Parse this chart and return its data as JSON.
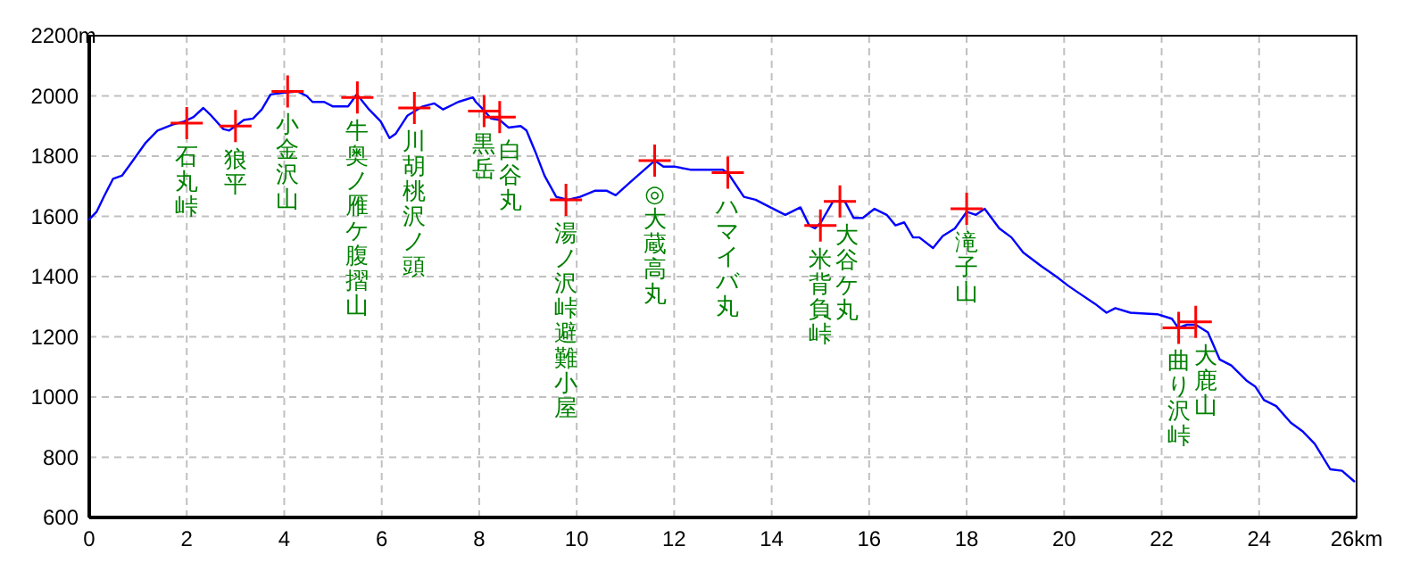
{
  "chart_data": {
    "type": "line",
    "xlim": [
      0,
      26
    ],
    "ylim": [
      600,
      2200
    ],
    "xticks": [
      0,
      2,
      4,
      6,
      8,
      10,
      12,
      14,
      16,
      18,
      20,
      22,
      24,
      {
        "value": 26,
        "label": "26km"
      }
    ],
    "yticks": [
      600,
      800,
      1000,
      1200,
      1400,
      1600,
      1800,
      2000,
      {
        "value": 2200,
        "label": "2200m"
      }
    ],
    "grid": true,
    "series": [
      {
        "type": "line",
        "color": "#0000ff",
        "marker": "none",
        "x": [
          0,
          0.15,
          0.3,
          0.49,
          0.67,
          0.85,
          1.16,
          1.4,
          1.71,
          1.95,
          2.14,
          2.34,
          2.5,
          2.75,
          2.87,
          3.05,
          3.17,
          3.36,
          3.54,
          3.72,
          3.97,
          4.27,
          4.46,
          4.58,
          4.82,
          5.0,
          5.31,
          5.49,
          5.74,
          5.98,
          6.16,
          6.29,
          6.53,
          6.84,
          7.08,
          7.26,
          7.57,
          7.87,
          7.93,
          8.08,
          8.24,
          8.42,
          8.6,
          8.85,
          8.97,
          9.15,
          9.34,
          9.58,
          9.82,
          10.07,
          10.37,
          10.62,
          10.8,
          11.11,
          11.6,
          11.78,
          12.02,
          12.33,
          12.75,
          13.0,
          13.12,
          13.43,
          13.67,
          13.91,
          14.28,
          14.59,
          14.77,
          14.89,
          15.01,
          15.26,
          15.5,
          15.68,
          15.87,
          16.11,
          16.36,
          16.54,
          16.72,
          16.9,
          17.03,
          17.31,
          17.51,
          17.76,
          18.0,
          18.19,
          18.37,
          18.67,
          18.92,
          19.16,
          19.53,
          19.84,
          20.08,
          20.26,
          20.63,
          20.87,
          21.05,
          21.36,
          21.91,
          22.21,
          22.34,
          22.52,
          22.7,
          22.95,
          23.19,
          23.43,
          23.74,
          23.92,
          24.1,
          24.35,
          24.65,
          24.9,
          25.14,
          25.46,
          25.7,
          25.95
        ],
        "values": [
          1590,
          1615,
          1665,
          1725,
          1735,
          1775,
          1845,
          1885,
          1905,
          1915,
          1930,
          1960,
          1935,
          1890,
          1885,
          1905,
          1920,
          1925,
          1955,
          2005,
          2010,
          2015,
          2000,
          1980,
          1980,
          1965,
          1965,
          2005,
          1955,
          1915,
          1860,
          1875,
          1935,
          1965,
          1975,
          1955,
          1980,
          1995,
          1980,
          1955,
          1925,
          1920,
          1895,
          1900,
          1885,
          1815,
          1735,
          1665,
          1655,
          1665,
          1685,
          1685,
          1670,
          1715,
          1785,
          1765,
          1765,
          1755,
          1755,
          1755,
          1740,
          1665,
          1655,
          1635,
          1605,
          1630,
          1570,
          1560,
          1580,
          1650,
          1650,
          1595,
          1595,
          1625,
          1605,
          1570,
          1580,
          1530,
          1530,
          1495,
          1535,
          1560,
          1615,
          1605,
          1625,
          1560,
          1530,
          1480,
          1435,
          1400,
          1370,
          1350,
          1310,
          1280,
          1295,
          1280,
          1275,
          1260,
          1230,
          1240,
          1240,
          1215,
          1125,
          1105,
          1055,
          1035,
          990,
          970,
          915,
          885,
          845,
          760,
          755,
          720
        ]
      },
      {
        "type": "scatter",
        "color": "#ff0000",
        "marker": "cross",
        "x": [
          2.0,
          3.0,
          4.07,
          5.5,
          6.67,
          8.1,
          8.42,
          9.78,
          11.6,
          13.1,
          15.0,
          15.4,
          18.0,
          22.35,
          22.7
        ],
        "values": [
          1910,
          1900,
          2015,
          1995,
          1960,
          1950,
          1930,
          1655,
          1785,
          1745,
          1570,
          1650,
          1625,
          1230,
          1250
        ]
      }
    ],
    "annotations": [
      {
        "text": "石丸峠",
        "x": 2.0,
        "y": 1910
      },
      {
        "text": "狼平",
        "x": 3.0,
        "y": 1900
      },
      {
        "text": "小金沢山",
        "x": 4.07,
        "y": 2015
      },
      {
        "text": "牛奥ノ雁ケ腹摺山",
        "x": 5.5,
        "y": 1995
      },
      {
        "text": "川胡桃沢ノ頭",
        "x": 6.67,
        "y": 1960
      },
      {
        "text": "黒岳",
        "x": 8.1,
        "y": 1950
      },
      {
        "text": "白谷丸",
        "x": 8.42,
        "y": 1930
      },
      {
        "text": "湯ノ沢峠避難小屋",
        "x": 9.78,
        "y": 1655
      },
      {
        "text": "◎大蔵高丸",
        "x": 11.6,
        "y": 1785
      },
      {
        "text": "ハマイバ丸",
        "x": 13.1,
        "y": 1745
      },
      {
        "text": "米背負峠",
        "x": 15.0,
        "y": 1570
      },
      {
        "text": "大谷ケ丸",
        "x": 15.4,
        "y": 1650
      },
      {
        "text": "滝子山",
        "x": 18.0,
        "y": 1625
      },
      {
        "text": "曲り沢峠",
        "x": 22.35,
        "y": 1230
      },
      {
        "text": "大鹿山",
        "x": 22.7,
        "y": 1250
      }
    ]
  }
}
